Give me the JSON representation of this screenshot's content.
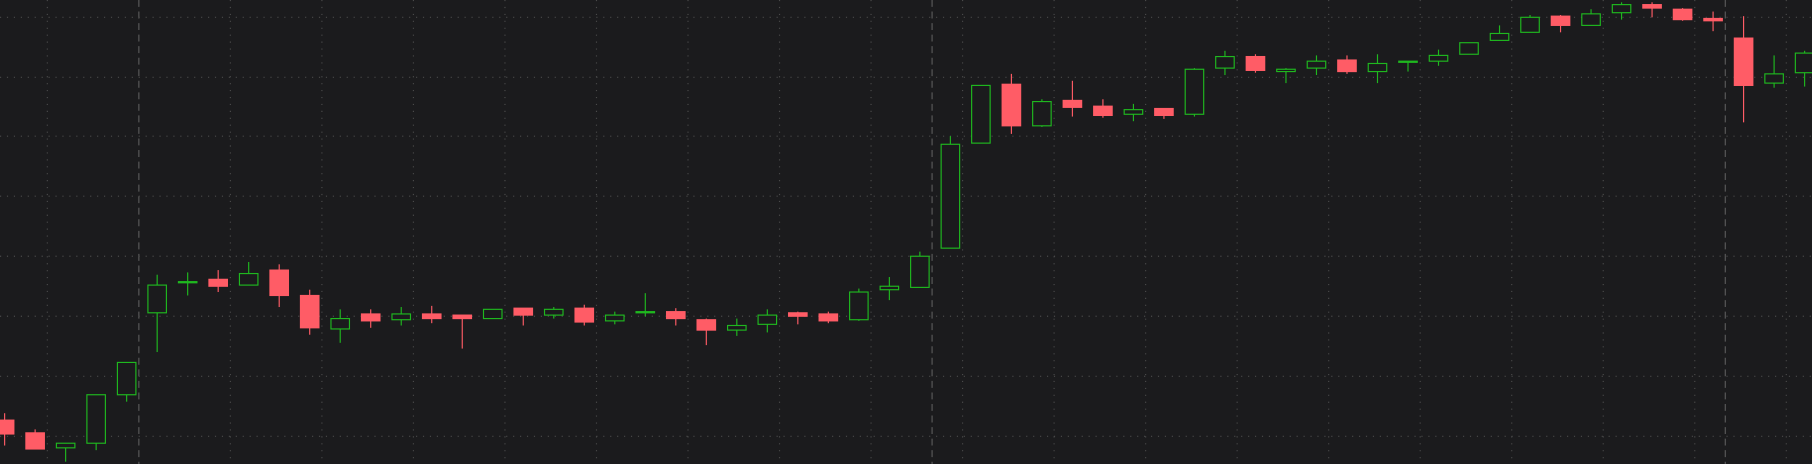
{
  "chart_data": {
    "type": "candlestick",
    "up_color": "#1fb81f",
    "down_color": "#ff5c66",
    "background": "#1b1b1d",
    "grid": true,
    "ylim": [
      0,
      402
    ],
    "yticks": [
      24,
      76,
      128,
      180,
      232,
      284,
      335,
      387
    ],
    "open": [
      38,
      27,
      14,
      18,
      60,
      131,
      158,
      160,
      155,
      168,
      146,
      117,
      130,
      125,
      130,
      129,
      126,
      135,
      129,
      135,
      124,
      131,
      132,
      125,
      116,
      121,
      131,
      130,
      125,
      151,
      153,
      187,
      278,
      329,
      293,
      315,
      310,
      303,
      308,
      303,
      343,
      353,
      340,
      343,
      350,
      340,
      348,
      349,
      355,
      367,
      374,
      388,
      380,
      391,
      398,
      394,
      386,
      369,
      330,
      339
    ],
    "high": [
      44,
      30,
      18,
      60,
      88,
      164,
      166,
      168,
      175,
      173,
      151,
      134,
      134,
      136,
      137,
      129,
      134,
      135,
      136,
      138,
      132,
      148,
      135,
      126,
      126,
      134,
      132,
      132,
      152,
      162,
      184,
      284,
      328,
      338,
      316,
      332,
      316,
      312,
      308,
      343,
      358,
      355,
      343,
      354,
      354,
      355,
      349,
      359,
      365,
      380,
      389,
      389,
      394,
      400,
      400,
      395,
      392,
      388,
      354,
      358
    ],
    "low": [
      16,
      13,
      2,
      12,
      54,
      97,
      146,
      149,
      155,
      136,
      112,
      105,
      118,
      120,
      122,
      100,
      126,
      120,
      126,
      120,
      121,
      128,
      120,
      103,
      111,
      114,
      121,
      122,
      124,
      142,
      153,
      187,
      278,
      286,
      292,
      301,
      300,
      297,
      299,
      301,
      337,
      339,
      330,
      337,
      338,
      330,
      340,
      345,
      355,
      367,
      374,
      374,
      380,
      385,
      387,
      384,
      375,
      296,
      326,
      327
    ],
    "close": [
      26,
      13,
      18,
      60,
      88,
      155,
      158,
      154,
      165,
      146,
      118,
      126,
      124,
      130,
      126,
      126,
      134,
      129,
      134,
      123,
      129,
      132,
      126,
      116,
      120,
      129,
      128,
      124,
      149,
      154,
      180,
      277,
      328,
      293,
      314,
      309,
      302,
      307,
      302,
      342,
      353,
      341,
      342,
      349,
      340,
      347,
      349,
      354,
      365,
      373,
      387,
      380,
      390,
      398,
      395,
      385,
      384,
      328,
      338,
      356
    ]
  }
}
